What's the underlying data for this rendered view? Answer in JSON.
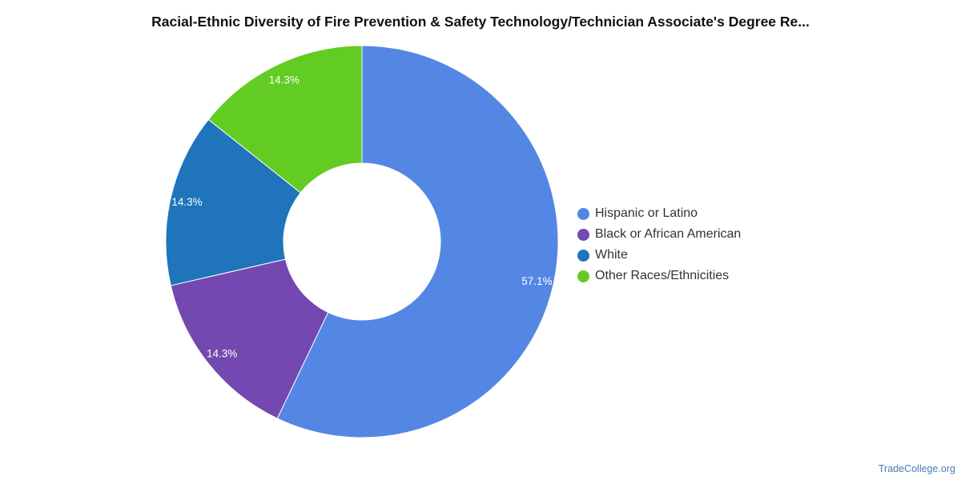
{
  "chart_data": {
    "type": "pie",
    "variant": "donut",
    "title": "Racial-Ethnic Diversity of Fire Prevention & Safety Technology/Technician Associate's Degree Re...",
    "slices": [
      {
        "label": "Hispanic or Latino",
        "value": 57.1,
        "value_label": "57.1%",
        "color": "#5486e3"
      },
      {
        "label": "Black or African American",
        "value": 14.3,
        "value_label": "14.3%",
        "color": "#7348b0"
      },
      {
        "label": "White",
        "value": 14.3,
        "value_label": "14.3%",
        "color": "#1f74bb"
      },
      {
        "label": "Other Races/Ethnicities",
        "value": 14.3,
        "value_label": "14.3%",
        "color": "#62cc23"
      }
    ],
    "start_angle_deg": 0,
    "direction": "clockwise",
    "legend_position": "right"
  },
  "footer": {
    "credit": "TradeCollege.org"
  }
}
